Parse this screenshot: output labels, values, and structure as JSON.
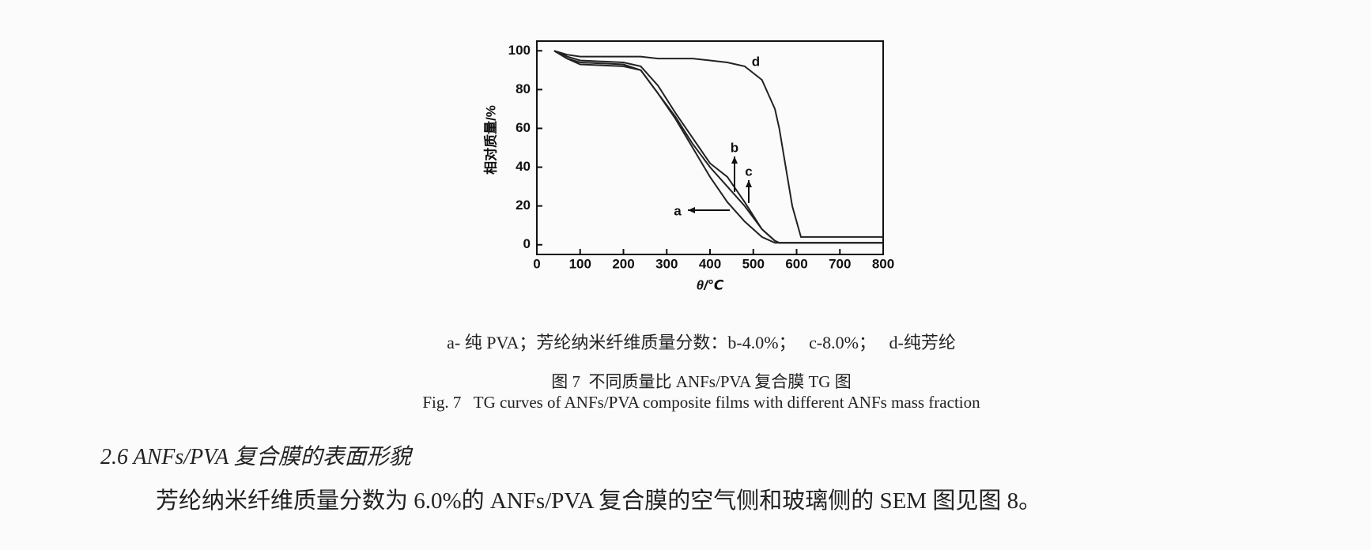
{
  "chart_data": {
    "type": "line",
    "xlabel": "θ/℃",
    "ylabel": "相对质量/%",
    "x": [
      40,
      70,
      100,
      200,
      240,
      280,
      320,
      360,
      400,
      440,
      480,
      520,
      550,
      560,
      590,
      610,
      800
    ],
    "series": [
      {
        "name": "a",
        "color": "#222222",
        "values": [
          100,
          96,
          93,
          92,
          90,
          78,
          65,
          50,
          35,
          22,
          12,
          4,
          1,
          1,
          1,
          1,
          1
        ]
      },
      {
        "name": "b",
        "color": "#222222",
        "values": [
          100,
          97,
          95,
          94,
          92,
          82,
          68,
          55,
          42,
          35,
          22,
          8,
          2,
          1,
          1,
          1,
          1
        ]
      },
      {
        "name": "c",
        "color": "#222222",
        "values": [
          100,
          96,
          94,
          93,
          90,
          78,
          66,
          52,
          40,
          30,
          20,
          8,
          2,
          1,
          1,
          1,
          1
        ]
      },
      {
        "name": "d",
        "color": "#222222",
        "values": [
          100,
          98,
          97,
          97,
          97,
          96,
          96,
          96,
          95,
          94,
          92,
          85,
          70,
          60,
          20,
          4,
          4
        ]
      }
    ],
    "xlim": [
      0,
      800
    ],
    "xticks": [
      0,
      100,
      200,
      300,
      400,
      500,
      600,
      700,
      800
    ],
    "ylim": [
      -5,
      105
    ],
    "yticks": [
      0,
      20,
      40,
      60,
      80,
      100
    ],
    "grid": false
  },
  "legend_note": "a- 纯 PVA；芳纶纳米纤维质量分数：b-4.0%；   c-8.0%；   d-纯芳纶",
  "caption_cn": "图 7  不同质量比 ANFs/PVA 复合膜 TG 图",
  "caption_en": "Fig. 7   TG curves of ANFs/PVA composite films with different ANFs mass fraction",
  "section_heading": "2.6 ANFs/PVA 复合膜的表面形貌",
  "paragraph": "芳纶纳米纤维质量分数为 6.0%的 ANFs/PVA 复合膜的空气侧和玻璃侧的 SEM 图见图 8。"
}
